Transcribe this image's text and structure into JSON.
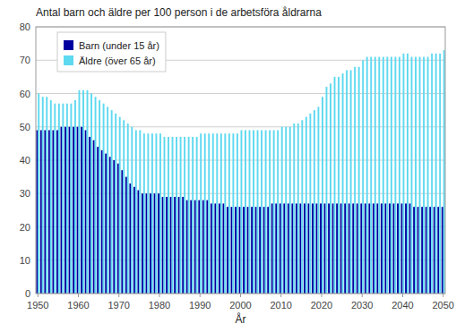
{
  "chart_data": {
    "type": "bar",
    "title": "Antal barn och äldre per 100 person i de arbetsföra åldrarna",
    "xlabel": "År",
    "x": [
      1950,
      1951,
      1952,
      1953,
      1954,
      1955,
      1956,
      1957,
      1958,
      1959,
      1960,
      1961,
      1962,
      1963,
      1964,
      1965,
      1966,
      1967,
      1968,
      1969,
      1970,
      1971,
      1972,
      1973,
      1974,
      1975,
      1976,
      1977,
      1978,
      1979,
      1980,
      1981,
      1982,
      1983,
      1984,
      1985,
      1986,
      1987,
      1988,
      1989,
      1990,
      1991,
      1992,
      1993,
      1994,
      1995,
      1996,
      1997,
      1998,
      1999,
      2000,
      2001,
      2002,
      2003,
      2004,
      2005,
      2006,
      2007,
      2008,
      2009,
      2010,
      2011,
      2012,
      2013,
      2014,
      2015,
      2016,
      2017,
      2018,
      2019,
      2020,
      2021,
      2022,
      2023,
      2024,
      2025,
      2026,
      2027,
      2028,
      2029,
      2030,
      2031,
      2032,
      2033,
      2034,
      2035,
      2036,
      2037,
      2038,
      2039,
      2040,
      2041,
      2042,
      2043,
      2044,
      2045,
      2046,
      2047,
      2048,
      2049,
      2050
    ],
    "series": [
      {
        "name": "Barn (under 15 år)",
        "color": "#0000A0",
        "values": [
          49,
          49,
          49,
          49,
          49,
          49,
          50,
          50,
          50,
          50,
          50,
          50,
          49,
          47,
          46,
          44,
          43,
          42,
          41,
          40,
          39,
          37,
          35,
          33,
          32,
          31,
          30,
          30,
          30,
          30,
          30,
          29,
          29,
          29,
          29,
          29,
          29,
          28,
          28,
          28,
          28,
          28,
          28,
          27,
          27,
          27,
          27,
          26,
          26,
          26,
          26,
          26,
          26,
          26,
          26,
          26,
          26,
          26,
          27,
          27,
          27,
          27,
          27,
          27,
          27,
          27,
          27,
          27,
          27,
          27,
          27,
          27,
          27,
          27,
          27,
          27,
          27,
          27,
          27,
          27,
          27,
          27,
          27,
          27,
          27,
          27,
          27,
          27,
          27,
          27,
          27,
          27,
          27,
          26,
          26,
          26,
          26,
          26,
          26,
          26,
          26
        ]
      },
      {
        "name": "Äldre (över 65 år)",
        "color": "#5DD9F0",
        "values": [
          60,
          59,
          59,
          58,
          57,
          57,
          57,
          57,
          57,
          58,
          61,
          61,
          61,
          60,
          59,
          58,
          57,
          56,
          55,
          54,
          53,
          52,
          51,
          50,
          49,
          49,
          48,
          48,
          48,
          48,
          48,
          47,
          47,
          47,
          47,
          47,
          47,
          47,
          47,
          47,
          48,
          48,
          48,
          48,
          48,
          48,
          48,
          48,
          48,
          48,
          49,
          49,
          49,
          49,
          49,
          49,
          49,
          49,
          49,
          49,
          50,
          50,
          50,
          51,
          51,
          52,
          53,
          54,
          55,
          56,
          59,
          62,
          63,
          65,
          65,
          66,
          67,
          67,
          68,
          68,
          70,
          71,
          71,
          71,
          71,
          71,
          71,
          71,
          71,
          71,
          72,
          72,
          71,
          71,
          71,
          71,
          71,
          72,
          72,
          72,
          73
        ]
      }
    ],
    "xlim": [
      1949.5,
      2050.5
    ],
    "xticks": [
      1950,
      1960,
      1970,
      1980,
      1990,
      2000,
      2010,
      2020,
      2030,
      2040,
      2050
    ],
    "ylim": [
      0,
      80
    ],
    "yticks": [
      0,
      10,
      20,
      30,
      40,
      50,
      60,
      70,
      80
    ],
    "grid": true,
    "legend": "upper left"
  }
}
